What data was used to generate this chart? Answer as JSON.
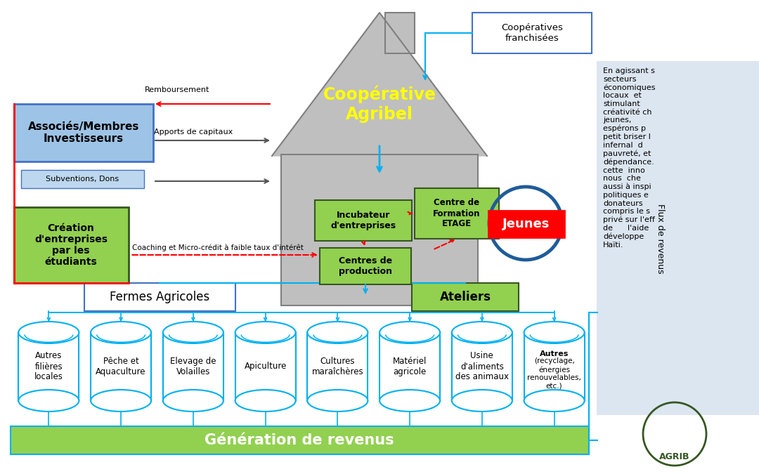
{
  "bg_color": "#ffffff",
  "right_panel_color": "#dce6f1",
  "right_panel_text": "En agissant s\nsecteurs\néconomiques\nlocaux  et\nstimulant\ncréativité ch\njeunes,\nespérons p\npetit briser l\ninfernal  d\npauvreté, et\ndépendance.\ncette  inno\nnous  che\naussi à inspi\npolitiques e\ndonateurs\ncompris le s\nprivé sur l'eff\nde      l'aide\ndéveloppe\nHaïti.",
  "flux_label": "Flux de revenus",
  "cooperatives_franchisees": "Coopératives\nfranchisées",
  "cooperative_title": "Coopérative\nAgribel",
  "associes_title": "Associés/Membres\nInvestisseurs",
  "subventions": "Subventions, Dons",
  "remboursement": "Remboursement",
  "apports": "Apports de capitaux",
  "creation_title": "Création\nd'entreprises\npar les\nétudiants",
  "coaching": "Coaching et Micro-crédit à faible taux d'intérêt",
  "incubateur": "Incubateur\nd'entreprises",
  "centre_formation": "Centre de\nFormation\nETAGE",
  "centres_production": "Centres de\nproduction",
  "jeunes": "Jeunes",
  "fermes_agricoles": "Fermes Agricoles",
  "ateliers": "Ateliers",
  "generation": "Génération de revenus",
  "cylinders": [
    "Autres\nfilières\nlocales",
    "Pêche et\nAquaculture",
    "Elevage de\nVolailles",
    "Apiculture",
    "Cultures\nmaraîchères",
    "Matériel\nagricole",
    "Usine\nd'aliments\ndes animaux",
    "Autres\n(recyclage,\nénergies\nrenouvelables,\netc.)"
  ],
  "green_color": "#92D050",
  "dark_green": "#375623",
  "blue_color": "#4472C4",
  "light_blue": "#9DC3E6",
  "cyan_color": "#00B0F0",
  "red_color": "#FF0000",
  "gray_color": "#BFBFBF",
  "dark_gray": "#808080",
  "house_fill": "#BFBFBF",
  "logo_green": "#375623"
}
